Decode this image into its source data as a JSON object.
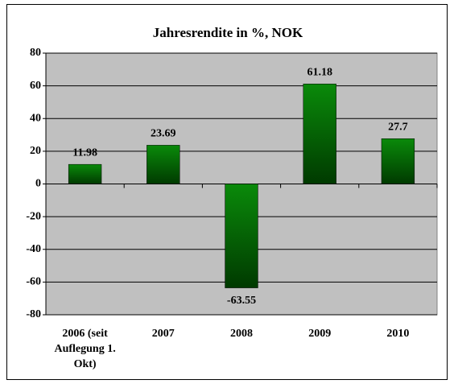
{
  "chart_data": {
    "type": "bar",
    "title": "Jahresrendite in %, NOK",
    "categories": [
      "2006 (seit Auflegung 1. Okt)",
      "2007",
      "2008",
      "2009",
      "2010"
    ],
    "values": [
      11.98,
      23.69,
      -63.55,
      61.18,
      27.7
    ],
    "color": "#0a8a0a",
    "ylim": [
      -80,
      80
    ],
    "yticks": [
      -80,
      -60,
      -40,
      -20,
      0,
      20,
      40,
      60,
      80
    ],
    "grid": true
  }
}
